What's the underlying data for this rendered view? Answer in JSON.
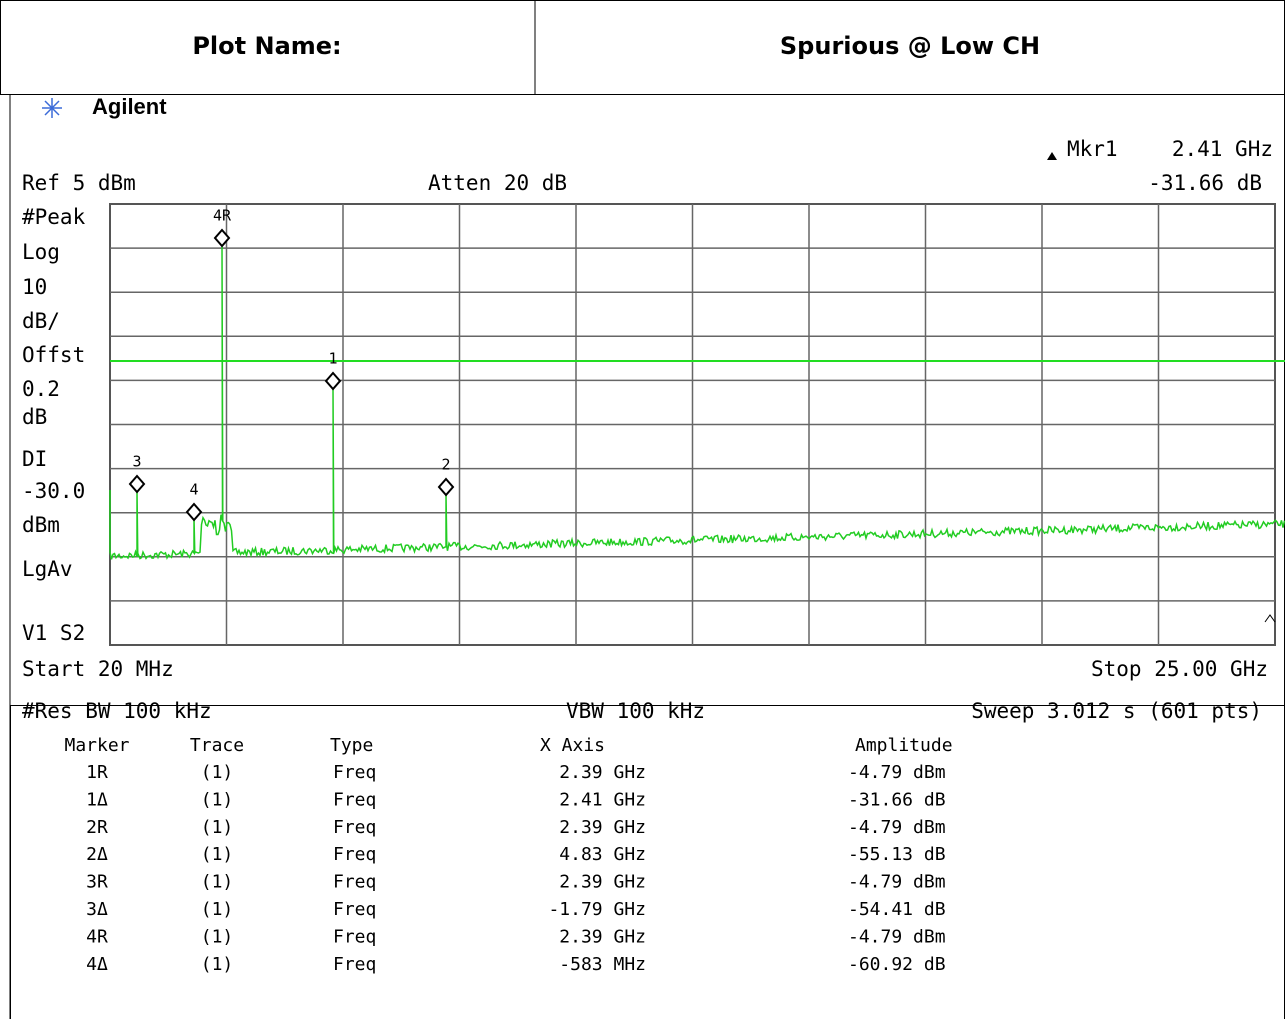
{
  "header": {
    "label": "Plot Name:",
    "value": "Spurious   @ Low CH"
  },
  "brand": "Agilent",
  "readout": {
    "marker": "Mkr1",
    "freq": "2.41 GHz",
    "level": "-31.66 dB"
  },
  "top": {
    "ref": "Ref 5 dBm",
    "atten": "Atten 20 dB"
  },
  "side_labels": [
    "#Peak",
    "Log",
    "10",
    "dB/",
    "Offst",
    "0.2",
    "dB",
    "DI",
    "-30.0",
    "dBm",
    "LgAv",
    "V1  S2"
  ],
  "markers": [
    "4R",
    "1",
    "2",
    "3",
    "4"
  ],
  "bottom": {
    "start": "Start 20 MHz",
    "stop": "Stop 25.00 GHz",
    "res_bw": "#Res BW 100 kHz",
    "vbw": "VBW 100 kHz",
    "sweep": "Sweep 3.012 s (601 pts)"
  },
  "table": {
    "columns": [
      "Marker",
      "Trace",
      "Type",
      "X Axis",
      "Amplitude"
    ],
    "rows": [
      [
        "1R",
        "(1)",
        "Freq",
        "2.39 GHz",
        "-4.79 dBm"
      ],
      [
        "1Δ",
        "(1)",
        "Freq",
        "2.41 GHz",
        "-31.66 dB"
      ],
      [
        "2R",
        "(1)",
        "Freq",
        "2.39 GHz",
        "-4.79 dBm"
      ],
      [
        "2Δ",
        "(1)",
        "Freq",
        "4.83 GHz",
        "-55.13 dB"
      ],
      [
        "3R",
        "(1)",
        "Freq",
        "2.39 GHz",
        "-4.79 dBm"
      ],
      [
        "3Δ",
        "(1)",
        "Freq",
        "-1.79 GHz",
        "-54.41 dB"
      ],
      [
        "4R",
        "(1)",
        "Freq",
        "2.39 GHz",
        "-4.79 dBm"
      ],
      [
        "4Δ",
        "(1)",
        "Freq",
        "-583 MHz",
        "-60.92 dB"
      ]
    ]
  }
}
